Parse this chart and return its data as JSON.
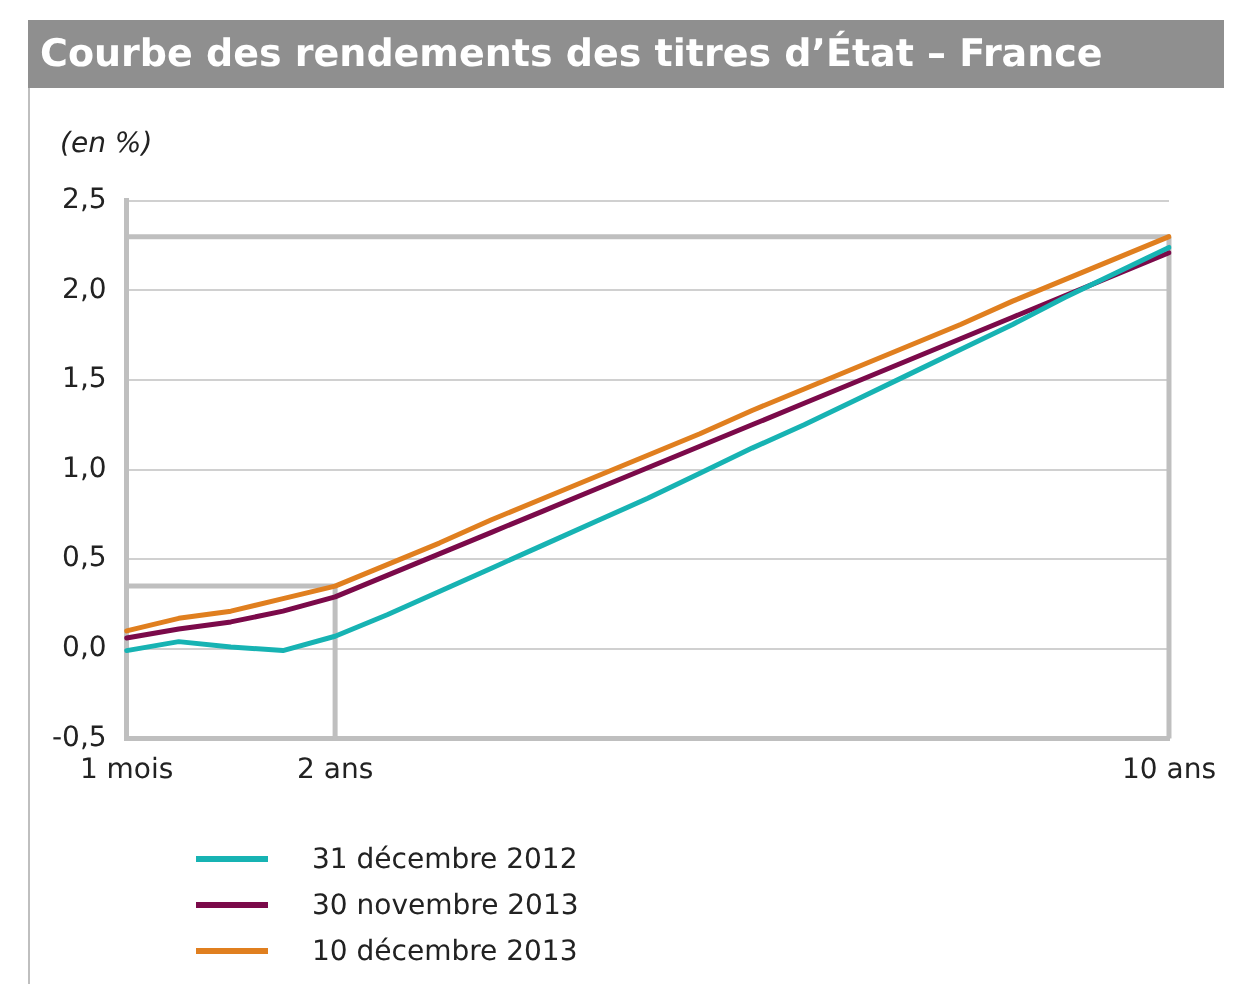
{
  "chart_data": {
    "type": "line",
    "title": "Courbe des rendements des titres d’État – France",
    "ylabel": "(en %)",
    "categories": [
      "1 mois",
      null,
      null,
      null,
      "2 ans",
      null,
      null,
      null,
      null,
      null,
      null,
      null,
      null,
      null,
      null,
      null,
      null,
      null,
      null,
      null,
      "10 ans"
    ],
    "ylim": [
      -0.5,
      2.5
    ],
    "yticks": [
      {
        "value": -0.5,
        "label": "-0,5"
      },
      {
        "value": 0,
        "label": "0,0"
      },
      {
        "value": 0.5,
        "label": "0,5"
      },
      {
        "value": 1,
        "label": "1,0"
      },
      {
        "value": 1.5,
        "label": "1,5"
      },
      {
        "value": 2,
        "label": "2,0"
      },
      {
        "value": 2.5,
        "label": "2,5"
      }
    ],
    "series": [
      {
        "name": "31 décembre 2012",
        "color": "#17b3b3",
        "values": [
          -0.01,
          0.04,
          0.01,
          -0.01,
          0.07,
          0.19,
          0.32,
          0.45,
          0.58,
          0.71,
          0.84,
          0.98,
          1.12,
          1.25,
          1.39,
          1.53,
          1.67,
          1.81,
          1.96,
          2.1,
          2.24
        ]
      },
      {
        "name": "30 novembre 2013",
        "color": "#7b0a4a",
        "values": [
          0.06,
          0.11,
          0.15,
          0.21,
          0.29,
          0.41,
          0.53,
          0.65,
          0.77,
          0.89,
          1.01,
          1.13,
          1.25,
          1.37,
          1.49,
          1.61,
          1.73,
          1.85,
          1.97,
          2.09,
          2.21
        ]
      },
      {
        "name": "10 décembre 2013",
        "color": "#e07f1f",
        "values": [
          0.1,
          0.17,
          0.21,
          0.28,
          0.35,
          0.47,
          0.59,
          0.72,
          0.84,
          0.96,
          1.08,
          1.2,
          1.33,
          1.45,
          1.57,
          1.69,
          1.81,
          1.94,
          2.06,
          2.18,
          2.3
        ]
      }
    ],
    "ref_lines": [
      {
        "axis": "x",
        "value": "2 ans",
        "color": "#bfbfbf"
      },
      {
        "axis": "y",
        "value": 0.35,
        "color": "#bfbfbf"
      },
      {
        "axis": "x",
        "value": "10 ans",
        "color": "#bfbfbf"
      },
      {
        "axis": "y",
        "value": 2.3,
        "color": "#bfbfbf"
      }
    ],
    "grid": "y",
    "legend": "bottom left",
    "marker": "none",
    "line_style": "solid"
  }
}
